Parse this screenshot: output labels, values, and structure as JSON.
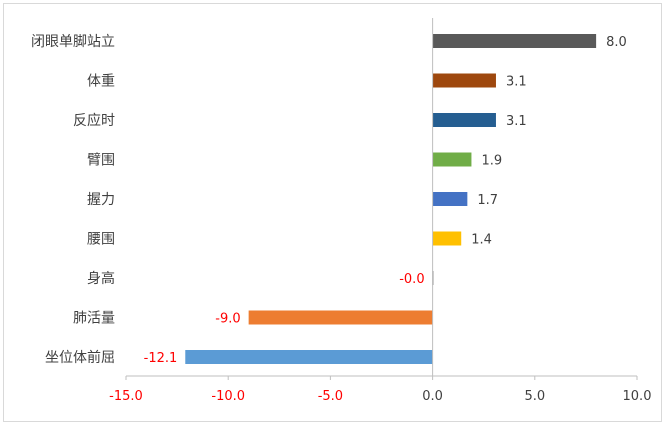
{
  "chart_data": {
    "type": "bar",
    "orientation": "horizontal",
    "title": "",
    "xlabel": "",
    "ylabel": "",
    "categories": [
      "闭眼单脚站立",
      "体重",
      "反应时",
      "臂围",
      "握力",
      "腰围",
      "身高",
      "肺活量",
      "坐位体前屈"
    ],
    "values": [
      8.0,
      3.1,
      3.1,
      1.9,
      1.7,
      1.4,
      -0.0,
      -9.0,
      -12.1
    ],
    "value_labels": [
      "8.0",
      "3.1",
      "3.1",
      "1.9",
      "1.7",
      "1.4",
      "-0.0",
      "-9.0",
      "-12.1"
    ],
    "colors": [
      "#595959",
      "#9e480e",
      "#255e91",
      "#70ad47",
      "#4472c4",
      "#ffc000",
      "#a5a5a5",
      "#ed7d31",
      "#5b9bd5"
    ],
    "xlim": [
      -15,
      10
    ],
    "xticks": [
      -15,
      -10,
      -5,
      0,
      5,
      10
    ],
    "xtick_labels": [
      "-15.0",
      "-10.0",
      "-5.0",
      "0.0",
      "5.0",
      "10.0"
    ],
    "negative_label_color": "#ff0000",
    "positive_label_color": "#404040",
    "grid": false,
    "legend": "none"
  }
}
